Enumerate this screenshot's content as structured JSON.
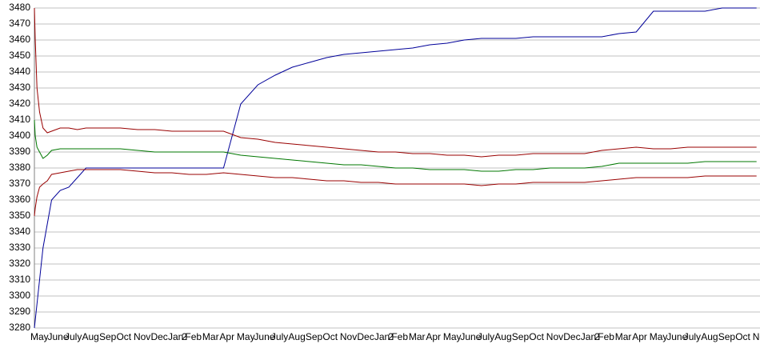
{
  "chart_data": {
    "type": "line",
    "x": [
      0,
      0.05,
      0.15,
      0.3,
      0.5,
      0.75,
      1,
      1.5,
      2,
      2.5,
      3,
      4,
      5,
      6,
      7,
      8,
      9,
      10,
      11,
      12,
      13,
      14,
      15,
      16,
      17,
      18,
      19,
      20,
      21,
      22,
      23,
      24,
      25,
      26,
      27,
      28,
      29,
      30,
      31,
      32,
      33,
      34,
      35,
      36,
      37,
      38,
      39,
      40,
      41,
      42
    ],
    "xlim": [
      0,
      42.2
    ],
    "xticks": [
      {
        "value": 0,
        "label": "May"
      },
      {
        "value": 1,
        "label": "June"
      },
      {
        "value": 2,
        "label": "July"
      },
      {
        "value": 3,
        "label": "Aug"
      },
      {
        "value": 4,
        "label": "Sep"
      },
      {
        "value": 5,
        "label": "Oct"
      },
      {
        "value": 6,
        "label": "Nov"
      },
      {
        "value": 7,
        "label": "Dec"
      },
      {
        "value": 8,
        "label": "Jan"
      },
      {
        "value": 8.8,
        "label": "2"
      },
      {
        "value": 9,
        "label": "Feb"
      },
      {
        "value": 10,
        "label": "Mar"
      },
      {
        "value": 11,
        "label": "Apr"
      },
      {
        "value": 12,
        "label": "May"
      },
      {
        "value": 13,
        "label": "June"
      },
      {
        "value": 14,
        "label": "July"
      },
      {
        "value": 15,
        "label": "Aug"
      },
      {
        "value": 16,
        "label": "Sep"
      },
      {
        "value": 17,
        "label": "Oct"
      },
      {
        "value": 18,
        "label": "Nov"
      },
      {
        "value": 19,
        "label": "Dec"
      },
      {
        "value": 20,
        "label": "Jan"
      },
      {
        "value": 20.8,
        "label": "2"
      },
      {
        "value": 21,
        "label": "Feb"
      },
      {
        "value": 22,
        "label": "Mar"
      },
      {
        "value": 23,
        "label": "Apr"
      },
      {
        "value": 24,
        "label": "May"
      },
      {
        "value": 25,
        "label": "June"
      },
      {
        "value": 26,
        "label": "July"
      },
      {
        "value": 27,
        "label": "Aug"
      },
      {
        "value": 28,
        "label": "Sep"
      },
      {
        "value": 29,
        "label": "Oct"
      },
      {
        "value": 30,
        "label": "Nov"
      },
      {
        "value": 31,
        "label": "Dec"
      },
      {
        "value": 32,
        "label": "Jan"
      },
      {
        "value": 32.8,
        "label": "2"
      },
      {
        "value": 33,
        "label": "Feb"
      },
      {
        "value": 34,
        "label": "Mar"
      },
      {
        "value": 35,
        "label": "Apr"
      },
      {
        "value": 36,
        "label": "May"
      },
      {
        "value": 37,
        "label": "June"
      },
      {
        "value": 38,
        "label": "July"
      },
      {
        "value": 39,
        "label": "Aug"
      },
      {
        "value": 40,
        "label": "Sep"
      },
      {
        "value": 41,
        "label": "Oct"
      },
      {
        "value": 42,
        "label": "Nov"
      }
    ],
    "ylim": [
      3280,
      3480
    ],
    "yticks": [
      3280,
      3290,
      3300,
      3310,
      3320,
      3330,
      3340,
      3350,
      3360,
      3370,
      3380,
      3390,
      3400,
      3410,
      3420,
      3430,
      3440,
      3450,
      3460,
      3470,
      3480
    ],
    "grid": true,
    "series": [
      {
        "color": "#000099",
        "values": [
          3280,
          3285,
          3295,
          3310,
          3330,
          3345,
          3360,
          3366,
          3368,
          3374,
          3380,
          3380,
          3380,
          3380,
          3380,
          3380,
          3380,
          3380,
          3380,
          3420,
          3432,
          3438,
          3443,
          3446,
          3449,
          3451,
          3452,
          3453,
          3454,
          3455,
          3457,
          3458,
          3460,
          3461,
          3461,
          3461,
          3462,
          3462,
          3462,
          3462,
          3462,
          3464,
          3465,
          3478,
          3478,
          3478,
          3478,
          3480,
          3480,
          3480
        ]
      },
      {
        "color": "#990000",
        "values": [
          3480,
          3460,
          3430,
          3415,
          3405,
          3402,
          3403,
          3405,
          3405,
          3404,
          3405,
          3405,
          3405,
          3404,
          3404,
          3403,
          3403,
          3403,
          3403,
          3399,
          3398,
          3396,
          3395,
          3394,
          3393,
          3392,
          3391,
          3390,
          3390,
          3389,
          3389,
          3388,
          3388,
          3387,
          3388,
          3388,
          3389,
          3389,
          3389,
          3389,
          3391,
          3392,
          3393,
          3392,
          3392,
          3393,
          3393,
          3393,
          3393,
          3393
        ]
      },
      {
        "color": "#007700",
        "values": [
          3410,
          3400,
          3393,
          3390,
          3386,
          3388,
          3391,
          3392,
          3392,
          3392,
          3392,
          3392,
          3392,
          3391,
          3390,
          3390,
          3390,
          3390,
          3390,
          3388,
          3387,
          3386,
          3385,
          3384,
          3383,
          3382,
          3382,
          3381,
          3380,
          3380,
          3379,
          3379,
          3379,
          3378,
          3378,
          3379,
          3379,
          3380,
          3380,
          3380,
          3381,
          3383,
          3383,
          3383,
          3383,
          3383,
          3384,
          3384,
          3384,
          3384
        ]
      },
      {
        "color": "#990000",
        "values": [
          3350,
          3355,
          3362,
          3368,
          3370,
          3372,
          3376,
          3377,
          3378,
          3379,
          3379,
          3379,
          3379,
          3378,
          3377,
          3377,
          3376,
          3376,
          3377,
          3376,
          3375,
          3374,
          3374,
          3373,
          3372,
          3372,
          3371,
          3371,
          3370,
          3370,
          3370,
          3370,
          3370,
          3369,
          3370,
          3370,
          3371,
          3371,
          3371,
          3371,
          3372,
          3373,
          3374,
          3374,
          3374,
          3374,
          3375,
          3375,
          3375,
          3375
        ]
      }
    ]
  }
}
